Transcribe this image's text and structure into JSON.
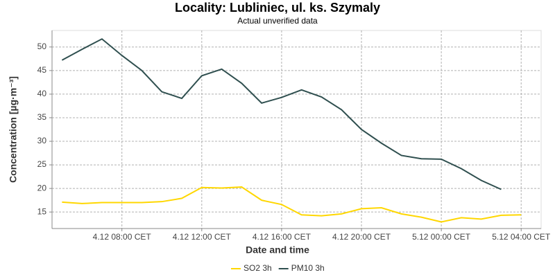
{
  "chart_data": {
    "type": "line",
    "title": "Locality: Lubliniec, ul. ks. Szymaly",
    "subtitle": "Actual unverified data",
    "x_label": "Date and time",
    "y_label": "Concentration [µg·m⁻³]",
    "x": [
      5,
      6,
      7,
      8,
      9,
      10,
      11,
      12,
      13,
      14,
      15,
      16,
      17,
      18,
      19,
      20,
      21,
      22,
      23,
      24,
      25,
      26,
      27,
      28
    ],
    "series": [
      {
        "name": "SO2 3h",
        "color": "#ffd700",
        "values": [
          17.1,
          16.8,
          17.0,
          17.0,
          17.0,
          17.2,
          17.9,
          20.2,
          20.1,
          20.3,
          17.5,
          16.6,
          14.4,
          14.2,
          14.6,
          15.7,
          15.9,
          14.6,
          13.9,
          12.9,
          13.8,
          13.5,
          14.3,
          14.4
        ]
      },
      {
        "name": "PM10 3h",
        "color": "#2f4f4f",
        "values": [
          47.2,
          49.5,
          51.7,
          48.2,
          45.0,
          40.5,
          39.1,
          43.9,
          45.3,
          42.3,
          38.1,
          39.3,
          40.9,
          39.4,
          36.7,
          32.5,
          29.6,
          27.0,
          26.3,
          26.2,
          24.2,
          21.7,
          19.8,
          null
        ]
      }
    ],
    "xlim": [
      4.5,
      29
    ],
    "xticks": [
      {
        "value": 8,
        "label": "4.12 08:00 CET"
      },
      {
        "value": 12,
        "label": "4.12 12:00 CET"
      },
      {
        "value": 16,
        "label": "4.12 16:00 CET"
      },
      {
        "value": 20,
        "label": "4.12 20:00 CET"
      },
      {
        "value": 24,
        "label": "5.12 00:00 CET"
      },
      {
        "value": 28,
        "label": "5.12 04:00 CET"
      }
    ],
    "ylim": [
      11.5,
      53.5
    ],
    "yticks": [
      15,
      20,
      25,
      30,
      35,
      40,
      45,
      50
    ],
    "grid": true,
    "legend": "bottom"
  }
}
